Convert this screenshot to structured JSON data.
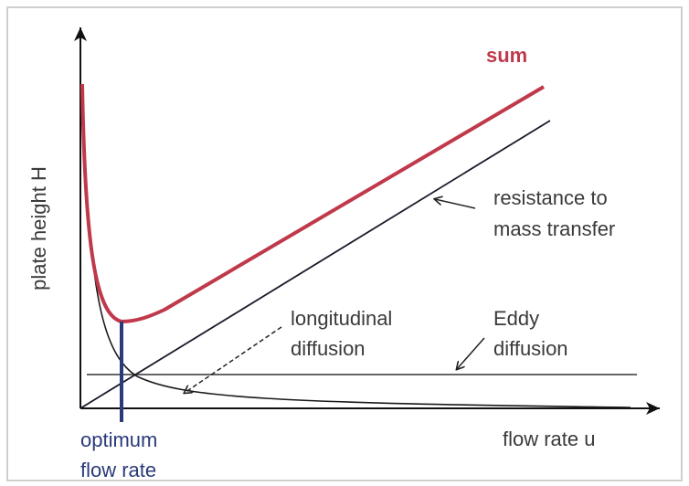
{
  "diagram": {
    "y_axis_label": "plate height H",
    "x_axis_label": "flow rate u",
    "curves": {
      "sum": "sum",
      "resistance": [
        "resistance to",
        "mass transfer"
      ],
      "longitudinal": [
        "longitudinal",
        "diffusion"
      ],
      "eddy": [
        "Eddy",
        "diffusion"
      ]
    },
    "optimum": [
      "optimum",
      "flow rate"
    ]
  }
}
